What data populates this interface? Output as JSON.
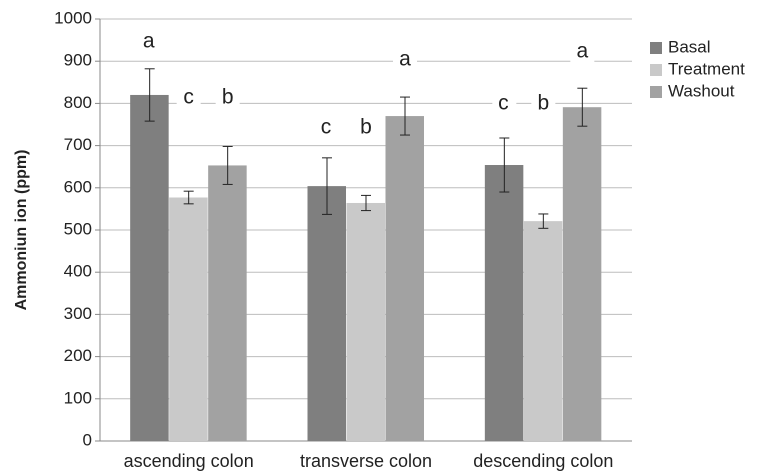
{
  "chart_data": {
    "type": "bar",
    "y_label": "Ammoniun ion (ppm)",
    "categories": [
      "ascending colon",
      "transverse colon",
      "descending colon"
    ],
    "series": [
      {
        "name": "Basal",
        "color": "#7f7f7f",
        "values": [
          820,
          604,
          654
        ],
        "errors": [
          62,
          67,
          64
        ],
        "letters": [
          "a",
          "c",
          "c"
        ]
      },
      {
        "name": "Treatment",
        "color": "#c9c9c9",
        "values": [
          577,
          564,
          521
        ],
        "errors": [
          15,
          18,
          17
        ],
        "letters": [
          "c",
          "b",
          "b"
        ]
      },
      {
        "name": "Washout",
        "color": "#a2a2a2",
        "values": [
          653,
          770,
          791
        ],
        "errors": [
          45,
          45,
          45
        ],
        "letters": [
          "b",
          "a",
          "a"
        ]
      }
    ],
    "ylim": [
      0,
      1000
    ],
    "yticks": [
      0,
      100,
      200,
      300,
      400,
      500,
      600,
      700,
      800,
      900,
      1000
    ],
    "grid": true,
    "legend": "right"
  }
}
